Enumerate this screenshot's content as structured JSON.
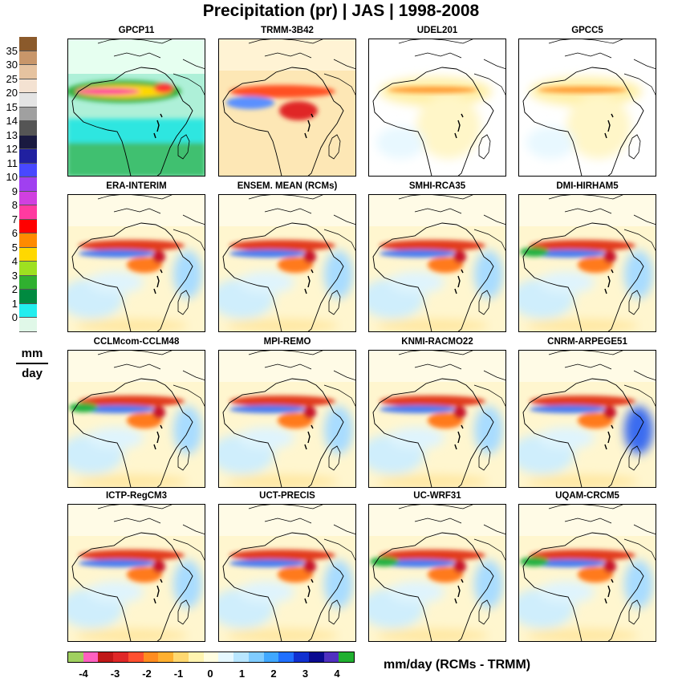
{
  "title": "Precipitation (pr) | JAS | 1998-2008",
  "units_left": {
    "numerator": "mm",
    "denominator": "day"
  },
  "diff_units": "mm/day  (RCMs - TRMM)",
  "chart_data": {
    "type": "heatmap",
    "panels": [
      {
        "name": "GPCP11",
        "field": "absolute"
      },
      {
        "name": "TRMM-3B42",
        "field": "absolute"
      },
      {
        "name": "UDEL201",
        "field": "difference"
      },
      {
        "name": "GPCC5",
        "field": "difference"
      },
      {
        "name": "ERA-INTERIM",
        "field": "difference"
      },
      {
        "name": "ENSEM. MEAN (RCMs)",
        "field": "difference"
      },
      {
        "name": "SMHI-RCA35",
        "field": "difference"
      },
      {
        "name": "DMI-HIRHAM5",
        "field": "difference"
      },
      {
        "name": "CCLMcom-CCLM48",
        "field": "difference"
      },
      {
        "name": "MPI-REMO",
        "field": "difference"
      },
      {
        "name": "KNMI-RACMO22",
        "field": "difference"
      },
      {
        "name": "CNRM-ARPEGE51",
        "field": "difference"
      },
      {
        "name": "ICTP-RegCM3",
        "field": "difference"
      },
      {
        "name": "UCT-PRECIS",
        "field": "difference"
      },
      {
        "name": "UC-WRF31",
        "field": "difference"
      },
      {
        "name": "UQAM-CRCM5",
        "field": "difference"
      }
    ],
    "absolute_scale": {
      "ticks": [
        "35",
        "30",
        "25",
        "20",
        "15",
        "14",
        "13",
        "12",
        "11",
        "10",
        "9",
        "8",
        "7",
        "6",
        "5",
        "4",
        "3",
        "2",
        "1",
        "0"
      ],
      "colors": [
        "#8b5a2b",
        "#c8966a",
        "#e6c3a0",
        "#f4e2d2",
        "#e4e4e4",
        "#a0a0a0",
        "#555555",
        "#1a1a40",
        "#2020a0",
        "#4848ff",
        "#a040f0",
        "#d040e0",
        "#ff3aa0",
        "#ff0000",
        "#ff8a00",
        "#ffd800",
        "#9ee020",
        "#30b030",
        "#008a40",
        "#22eeee",
        "#e0f8e8"
      ]
    },
    "difference_scale": {
      "ticks": [
        "-4",
        "-3",
        "-2",
        "-1",
        "0",
        "1",
        "2",
        "3",
        "4"
      ],
      "colors": [
        "#a0d060",
        "#ff60c0",
        "#c01818",
        "#e02828",
        "#ff5030",
        "#ff8c20",
        "#ffb030",
        "#ffd870",
        "#fff4b0",
        "#fffde0",
        "#e6f8ff",
        "#b8e6ff",
        "#80ccff",
        "#40a8ff",
        "#2070ff",
        "#1030d0",
        "#0a0a90",
        "#5030c0",
        "#20b030"
      ]
    }
  }
}
